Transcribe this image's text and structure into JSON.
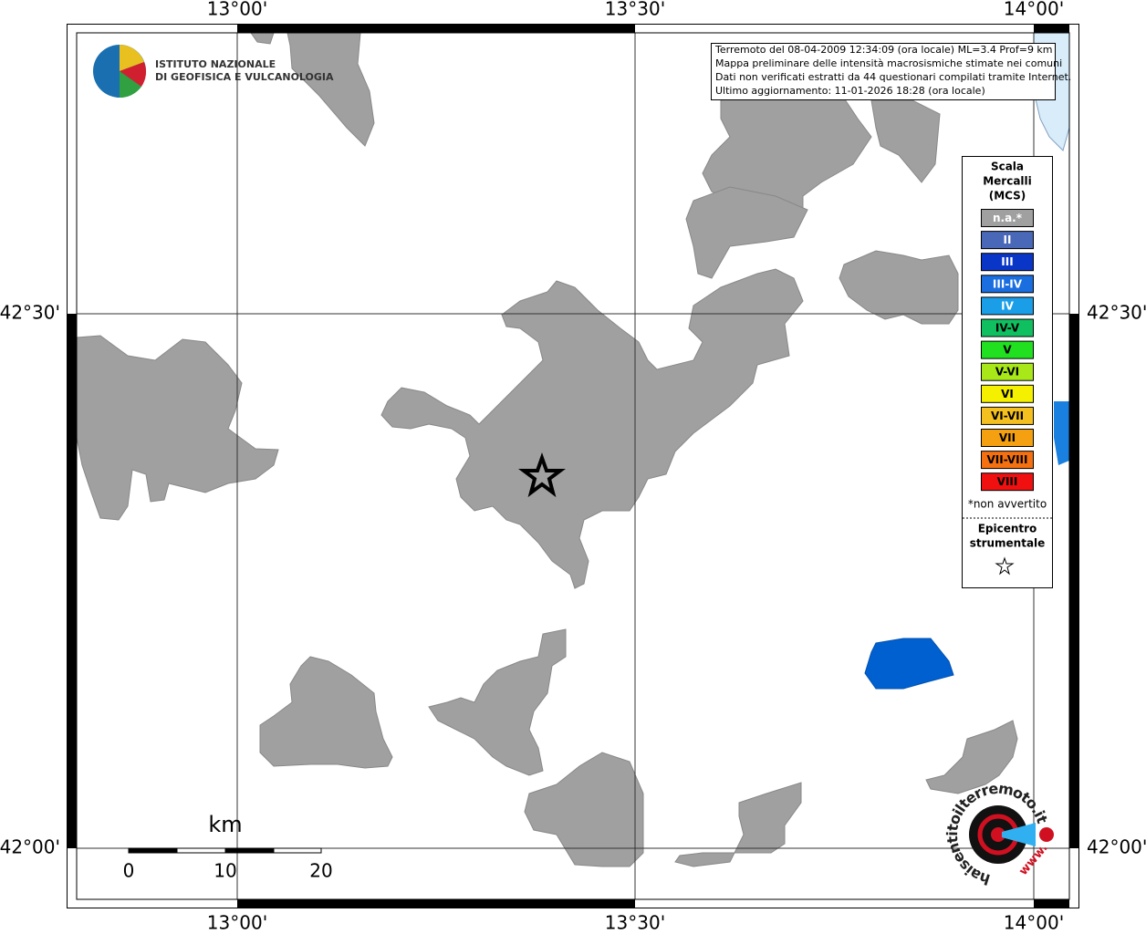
{
  "map": {
    "info": [
      "Terremoto del 08-04-2009 12:34:09 (ora locale) ML=3.4 Prof=9 km",
      "Mappa preliminare delle intensità macrosismiche stimate nei comuni",
      "Dati non verificati estratti da 44 questionari compilati tramite Internet.",
      "Ultimo aggiornamento: 11-01-2026 18:28 (ora locale)"
    ],
    "logo": {
      "line1": "ISTITUTO NAZIONALE",
      "line2": "DI GEOFISICA E VULCANOLOGIA"
    },
    "x_labels": [
      "13°00'",
      "13°30'",
      "14°00'"
    ],
    "y_labels": [
      "42°30'",
      "42°00'"
    ],
    "legend": {
      "title": [
        "Scala",
        "Mercalli",
        "(MCS)"
      ],
      "items": [
        {
          "label": "n.a.*",
          "color": "#a0a0a0",
          "text_color": "#ffffff"
        },
        {
          "label": "II",
          "color": "#4a68b8",
          "text_color": "#ffffff"
        },
        {
          "label": "III",
          "color": "#0a36c8",
          "text_color": "#ffffff"
        },
        {
          "label": "III-IV",
          "color": "#1a6ee0",
          "text_color": "#ffffff"
        },
        {
          "label": "IV",
          "color": "#1a9ee8",
          "text_color": "#ffffff"
        },
        {
          "label": "IV-V",
          "color": "#10c060",
          "text_color": "#000000"
        },
        {
          "label": "V",
          "color": "#20e020",
          "text_color": "#000000"
        },
        {
          "label": "V-VI",
          "color": "#a8e818",
          "text_color": "#000000"
        },
        {
          "label": "VI",
          "color": "#f4f000",
          "text_color": "#000000"
        },
        {
          "label": "VI-VII",
          "color": "#f4c020",
          "text_color": "#000000"
        },
        {
          "label": "VII",
          "color": "#f4a010",
          "text_color": "#000000"
        },
        {
          "label": "VII-VIII",
          "color": "#f47010",
          "text_color": "#000000"
        },
        {
          "label": "VIII",
          "color": "#f01010",
          "text_color": "#000000"
        }
      ],
      "note": "*non avvertito",
      "epicenter": [
        "Epicentro",
        "strumentale"
      ]
    },
    "scale": {
      "unit": "km",
      "labels": [
        "0",
        "10",
        "20"
      ]
    },
    "badge": {
      "site": "haisentitoilterremoto.it",
      "prefix": "www."
    }
  }
}
